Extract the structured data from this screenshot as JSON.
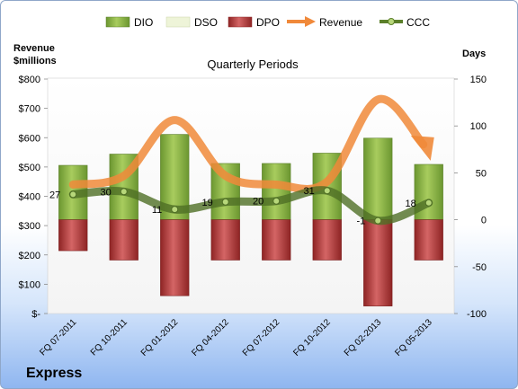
{
  "chart_data": {
    "type": "bar",
    "title": "Quarterly Periods",
    "company": "Express",
    "left_axis_label_line1": "Revenue",
    "left_axis_label_line2": "$millions",
    "right_axis_label": "Days",
    "categories": [
      "FQ 07-2011",
      "FQ 10-2011",
      "FQ 01-2012",
      "FQ 04-2012",
      "FQ 07-2012",
      "FQ 10-2012",
      "FQ 02-2013",
      "FQ 05-2013"
    ],
    "left_ticks": [
      "$-",
      "$100",
      "$200",
      "$300",
      "$400",
      "$500",
      "$600",
      "$700",
      "$800"
    ],
    "right_ticks": [
      "-100",
      "-50",
      "0",
      "50",
      "100",
      "150"
    ],
    "ylim_left": [
      0,
      800
    ],
    "ylim_right": [
      -100,
      150
    ],
    "legend": [
      "DIO",
      "DSO",
      "DPO",
      "Revenue",
      "CCC"
    ],
    "series": [
      {
        "name": "DIO",
        "axis": "right",
        "color": "#7ea83a",
        "values": [
          58,
          70,
          91,
          60,
          60,
          71,
          87,
          59
        ]
      },
      {
        "name": "DSO",
        "axis": "right",
        "color": "#e8f0c8",
        "values": [
          0,
          0,
          0,
          0,
          0,
          0,
          0,
          0
        ]
      },
      {
        "name": "DPO",
        "axis": "right",
        "color": "#b23a3a",
        "values": [
          -33,
          -43,
          -81,
          -43,
          -43,
          -43,
          -92,
          -43
        ]
      },
      {
        "name": "Revenue",
        "axis": "left",
        "color": "#f0893a",
        "values": [
          440,
          470,
          660,
          470,
          440,
          450,
          730,
          540
        ]
      },
      {
        "name": "CCC",
        "axis": "right",
        "color": "#5b7f2a",
        "values": [
          27,
          30,
          11,
          19,
          20,
          31,
          -1,
          18
        ]
      }
    ],
    "ccc_labels": [
      "27",
      "30",
      "11",
      "19",
      "20",
      "31",
      "-1",
      "18"
    ],
    "grid": false,
    "legend_position": "top"
  }
}
